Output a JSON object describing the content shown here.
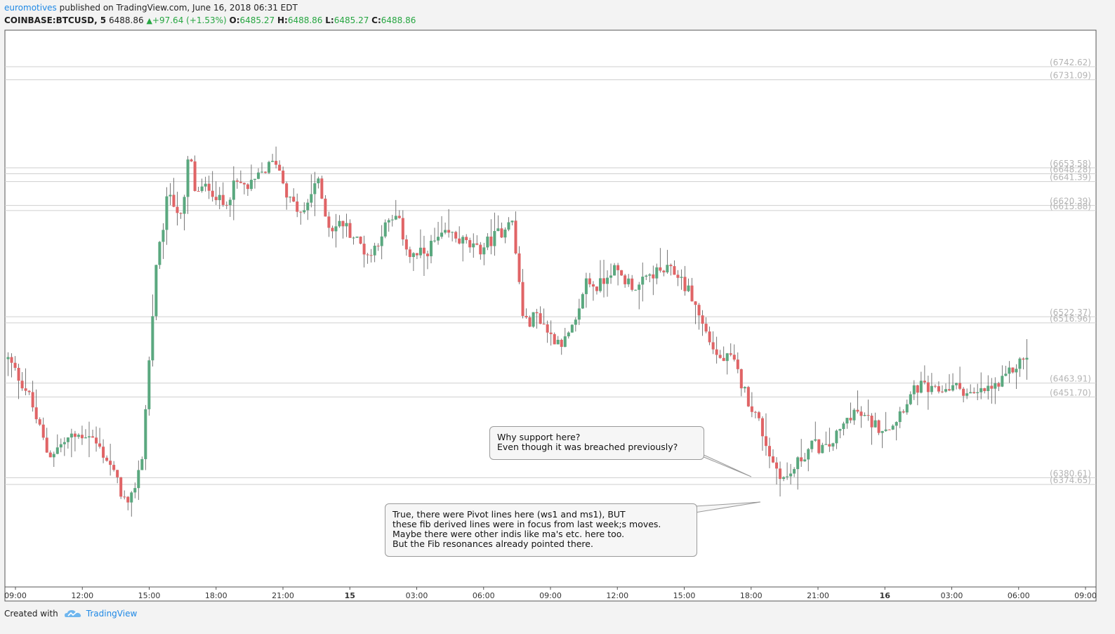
{
  "header": {
    "author": "euromotives",
    "published_text": "published on TradingView.com, June 16, 2018 06:31 EDT",
    "symbol": "COINBASE:BTCUSD, 5",
    "last": "6488.86",
    "change": "+97.64 (+1.53%)",
    "open_label": "O:",
    "open": "6485.27",
    "high_label": "H:",
    "high": "6488.86",
    "low_label": "L:",
    "low": "6485.27",
    "close_label": "C:",
    "close": "6488.86"
  },
  "footer": {
    "created_with": "Created with",
    "brand": "TradingView"
  },
  "callouts": [
    {
      "text": "Why support here?\nEven though it was breached previously?"
    },
    {
      "text": "True, there were Pivot lines here (ws1 and ms1), BUT\nthese fib derived lines were in focus from last week;s moves.\nMaybe there were other indis like ma's etc. here too.\nBut the Fib resonances already pointed there."
    }
  ],
  "colors": {
    "up": "#26a641",
    "down": "#e0474c",
    "up_candle": "#5aa87f",
    "down_candle": "#e06466",
    "level_line": "#cfcfcf",
    "level_label": "#b4b4b4",
    "brand": "#1e88e5"
  },
  "chart_data": {
    "type": "candlestick",
    "title": "COINBASE:BTCUSD, 5",
    "x_ticks": [
      "09:00",
      "12:00",
      "15:00",
      "18:00",
      "21:00",
      "15",
      "03:00",
      "06:00",
      "09:00",
      "12:00",
      "15:00",
      "18:00",
      "21:00",
      "16",
      "03:00",
      "06:00",
      "09:00"
    ],
    "horizontal_levels": [
      {
        "value": 6742.62,
        "label": "(6742.62)"
      },
      {
        "value": 6731.09,
        "label": "(6731.09)"
      },
      {
        "value": 6653.58,
        "label": "(6653.58)"
      },
      {
        "value": 6648.28,
        "label": "(6648.28)"
      },
      {
        "value": 6641.39,
        "label": "(6641.39)"
      },
      {
        "value": 6620.39,
        "label": "(6620.39)"
      },
      {
        "value": 6615.88,
        "label": "(6615.88)"
      },
      {
        "value": 6522.37,
        "label": "(6522.37)"
      },
      {
        "value": 6516.96,
        "label": "(6516.96)"
      },
      {
        "value": 6463.91,
        "label": "(6463.91)"
      },
      {
        "value": 6451.7,
        "label": "(6451.70)"
      },
      {
        "value": 6380.61,
        "label": "(6380.61)"
      },
      {
        "value": 6374.65,
        "label": "(6374.65)"
      }
    ],
    "ylim": [
      6320,
      6770
    ],
    "price_path": [
      [
        0,
        6485
      ],
      [
        3,
        6455
      ],
      [
        6,
        6400
      ],
      [
        9,
        6415
      ],
      [
        12,
        6420
      ],
      [
        15,
        6395
      ],
      [
        18,
        6352
      ],
      [
        20,
        6400
      ],
      [
        22,
        6560
      ],
      [
        24,
        6635
      ],
      [
        26,
        6605
      ],
      [
        27,
        6670
      ],
      [
        28,
        6630
      ],
      [
        30,
        6638
      ],
      [
        32,
        6620
      ],
      [
        34,
        6640
      ],
      [
        36,
        6635
      ],
      [
        38,
        6650
      ],
      [
        40,
        6660
      ],
      [
        42,
        6625
      ],
      [
        44,
        6610
      ],
      [
        46,
        6645
      ],
      [
        48,
        6600
      ],
      [
        50,
        6605
      ],
      [
        52,
        6590
      ],
      [
        54,
        6575
      ],
      [
        56,
        6600
      ],
      [
        58,
        6610
      ],
      [
        60,
        6575
      ],
      [
        62,
        6578
      ],
      [
        64,
        6590
      ],
      [
        66,
        6595
      ],
      [
        68,
        6588
      ],
      [
        70,
        6580
      ],
      [
        72,
        6590
      ],
      [
        74,
        6600
      ],
      [
        75,
        6615
      ],
      [
        77,
        6515
      ],
      [
        79,
        6525
      ],
      [
        81,
        6505
      ],
      [
        83,
        6500
      ],
      [
        85,
        6518
      ],
      [
        86,
        6555
      ],
      [
        88,
        6548
      ],
      [
        90,
        6565
      ],
      [
        92,
        6555
      ],
      [
        94,
        6548
      ],
      [
        96,
        6560
      ],
      [
        98,
        6563
      ],
      [
        100,
        6560
      ],
      [
        102,
        6540
      ],
      [
        104,
        6510
      ],
      [
        106,
        6485
      ],
      [
        108,
        6485
      ],
      [
        110,
        6455
      ],
      [
        112,
        6430
      ],
      [
        114,
        6395
      ],
      [
        116,
        6378
      ],
      [
        118,
        6395
      ],
      [
        120,
        6410
      ],
      [
        122,
        6405
      ],
      [
        124,
        6420
      ],
      [
        126,
        6440
      ],
      [
        128,
        6432
      ],
      [
        130,
        6425
      ],
      [
        132,
        6428
      ],
      [
        134,
        6448
      ],
      [
        136,
        6462
      ],
      [
        138,
        6455
      ],
      [
        140,
        6460
      ],
      [
        142,
        6460
      ],
      [
        144,
        6452
      ],
      [
        146,
        6458
      ],
      [
        148,
        6462
      ],
      [
        150,
        6477
      ],
      [
        152,
        6488
      ]
    ]
  }
}
